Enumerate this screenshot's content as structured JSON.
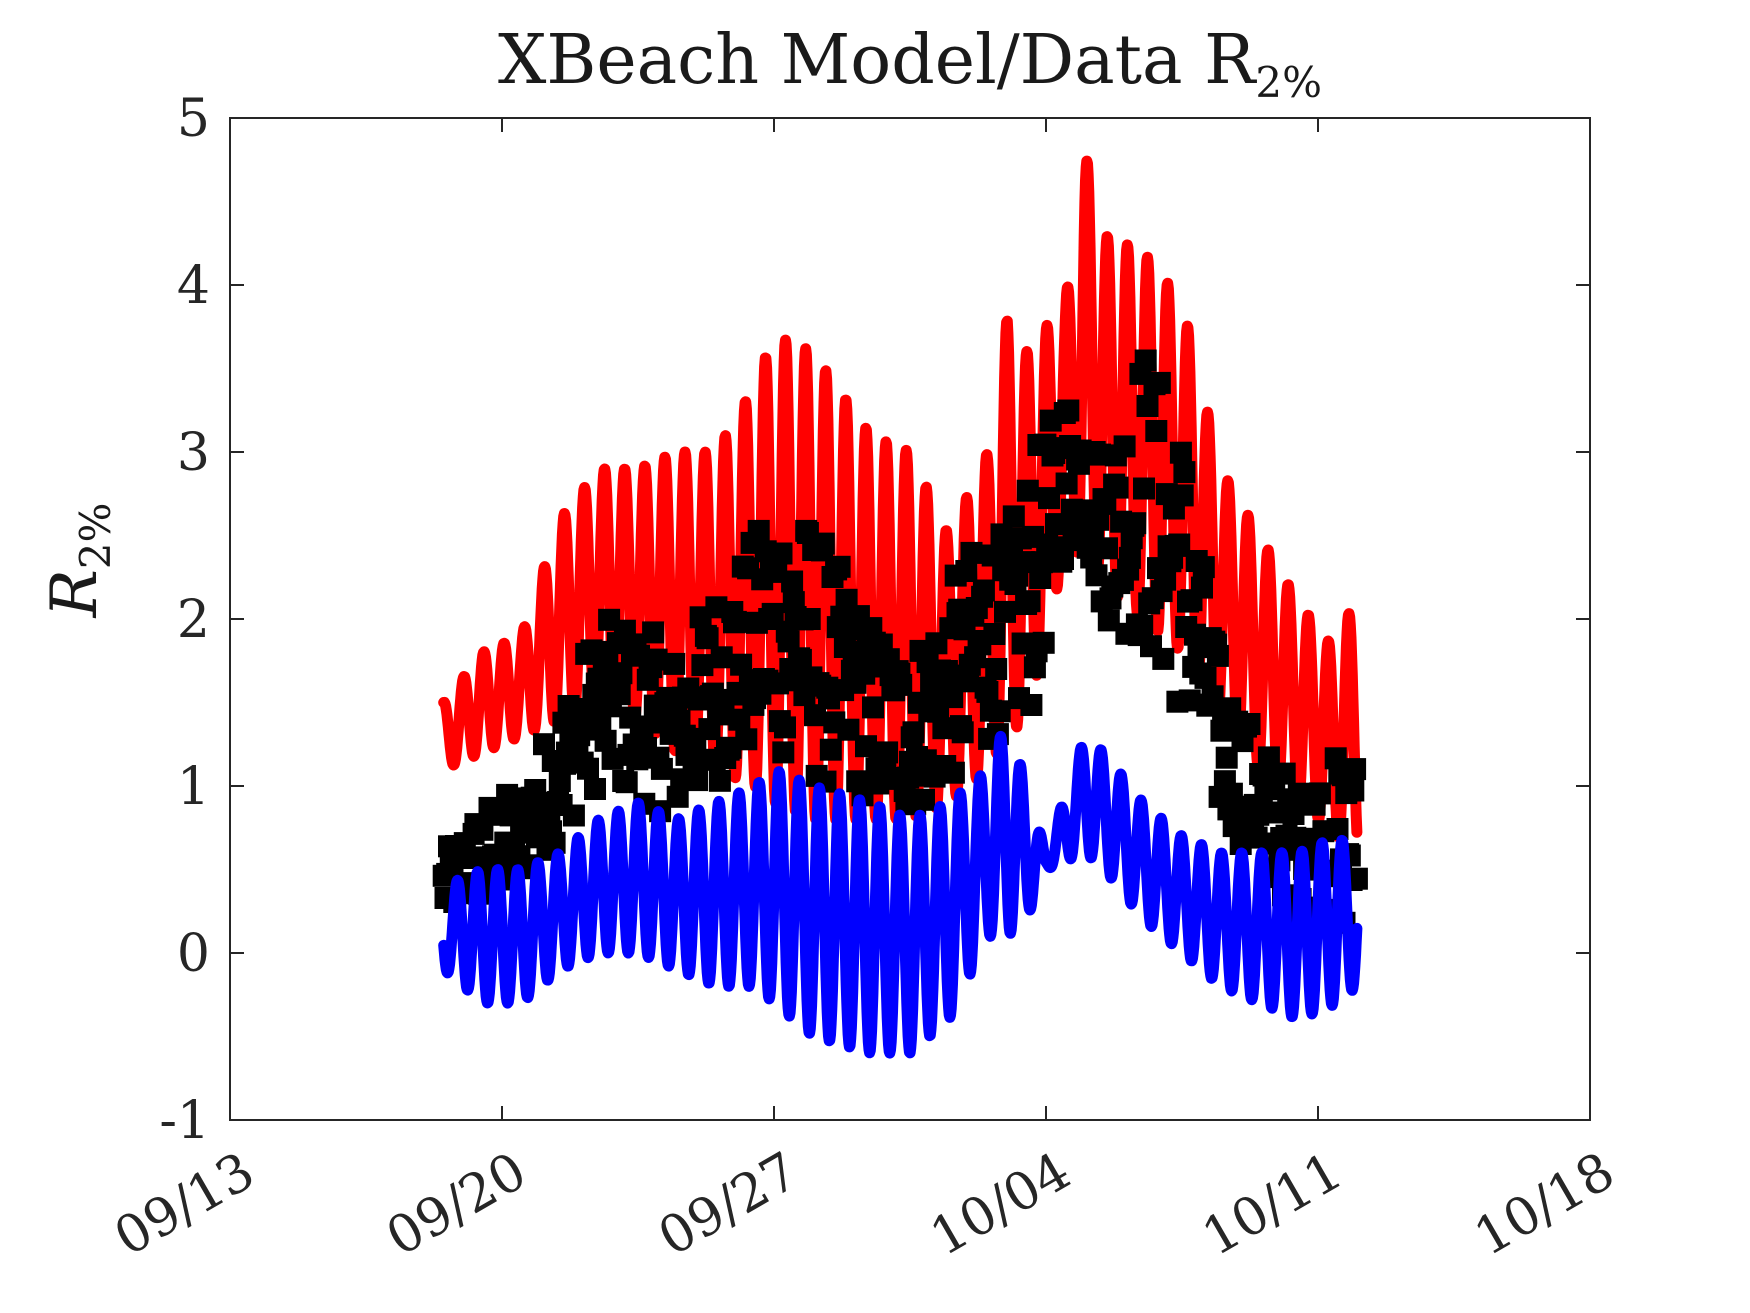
{
  "chart_data": {
    "type": "line",
    "title": "XBeach Model/Data R",
    "title_subscript": "2%",
    "ylabel": "R",
    "ylabel_subscript": "2%",
    "xlabel": "",
    "xlim": [
      "2023-09-13",
      "2023-10-18"
    ],
    "ylim": [
      -1,
      5
    ],
    "x_ticks": [
      "09/13",
      "09/20",
      "09/27",
      "10/04",
      "10/11",
      "10/18"
    ],
    "y_ticks": [
      "-1",
      "0",
      "1",
      "2",
      "3",
      "4",
      "5"
    ],
    "grid": false,
    "legend": "none",
    "colors": {
      "series_1": "#ff0000",
      "series_2": "#000000",
      "series_3": "#0000ff",
      "axes": "#262626"
    },
    "series": [
      {
        "style": "line",
        "color": "#ff0000",
        "period_hours": 12.42,
        "envelope": {
          "x": [
            "09/18 12:00",
            "09/19 12:00",
            "09/20 12:00",
            "09/21 12:00",
            "09/22 12:00",
            "09/23 12:00",
            "09/24 12:00",
            "09/25 12:00",
            "09/26 12:00",
            "09/27 00:00",
            "09/28 00:00",
            "09/29 12:00",
            "09/30 12:00",
            "10/01 12:00",
            "10/02 12:00",
            "10/03 00:00",
            "10/03 12:00",
            "10/04 12:00",
            "10/05 00:00",
            "10/05 12:00",
            "10/06 12:00",
            "10/07 12:00",
            "10/08 12:00",
            "10/09 12:00",
            "10/10 12:00",
            "10/11 12:00",
            "10/12 00:00"
          ],
          "max": [
            1.5,
            1.8,
            1.9,
            2.6,
            2.9,
            2.9,
            3.0,
            3.0,
            3.4,
            3.7,
            3.6,
            3.1,
            3.0,
            2.5,
            3.0,
            3.8,
            3.6,
            3.9,
            4.8,
            4.3,
            4.2,
            3.9,
            2.9,
            2.5,
            2.1,
            1.8,
            2.2
          ],
          "min": [
            1.1,
            1.2,
            1.3,
            1.4,
            1.5,
            1.4,
            1.2,
            1.1,
            1.0,
            0.9,
            0.8,
            0.8,
            0.8,
            0.9,
            1.1,
            1.3,
            1.4,
            2.4,
            2.4,
            2.2,
            2.0,
            1.8,
            1.4,
            1.1,
            0.9,
            0.7,
            0.6
          ]
        }
      },
      {
        "style": "square-markers",
        "color": "#000000",
        "envelope": {
          "x": [
            "09/18 12:00",
            "09/19 12:00",
            "09/20 12:00",
            "09/21 12:00",
            "09/22 12:00",
            "09/23 12:00",
            "09/24 12:00",
            "09/25 12:00",
            "09/26 12:00",
            "09/27 00:00",
            "09/28 00:00",
            "09/29 12:00",
            "09/30 12:00",
            "10/01 12:00",
            "10/02 12:00",
            "10/03 00:00",
            "10/03 12:00",
            "10/04 12:00",
            "10/05 00:00",
            "10/05 12:00",
            "10/06 12:00",
            "10/07 12:00",
            "10/08 12:00",
            "10/09 12:00",
            "10/10 12:00",
            "10/11 12:00",
            "10/12 00:00"
          ],
          "max": [
            0.6,
            0.9,
            1.0,
            1.5,
            2.0,
            2.0,
            1.8,
            2.2,
            2.5,
            2.8,
            2.6,
            2.0,
            1.8,
            2.2,
            2.6,
            2.5,
            2.9,
            3.4,
            3.3,
            3.0,
            3.7,
            3.2,
            1.7,
            1.3,
            1.0,
            1.2,
            1.2
          ],
          "min": [
            0.2,
            0.3,
            0.4,
            0.7,
            1.0,
            0.9,
            0.8,
            1.0,
            1.2,
            1.2,
            1.0,
            0.9,
            0.8,
            1.0,
            1.2,
            1.4,
            1.3,
            2.4,
            2.4,
            2.0,
            1.8,
            1.4,
            0.8,
            0.5,
            0.2,
            0.1,
            0.1
          ]
        }
      },
      {
        "style": "line",
        "color": "#0000ff",
        "period_hours": 12.42,
        "envelope": {
          "x": [
            "09/18 12:00",
            "09/19 12:00",
            "09/20 12:00",
            "09/21 12:00",
            "09/22 12:00",
            "09/23 12:00",
            "09/24 12:00",
            "09/25 12:00",
            "09/26 12:00",
            "09/27 00:00",
            "09/28 00:00",
            "09/29 12:00",
            "09/30 12:00",
            "10/01 12:00",
            "10/02 12:00",
            "10/03 00:00",
            "10/03 12:00",
            "10/04 00:00",
            "10/05 00:00",
            "10/05 12:00",
            "10/06 12:00",
            "10/07 12:00",
            "10/08 12:00",
            "10/09 12:00",
            "10/10 12:00",
            "10/11 12:00",
            "10/12 00:00"
          ],
          "max": [
            0.4,
            0.5,
            0.5,
            0.6,
            0.8,
            0.9,
            0.8,
            0.9,
            1.0,
            1.1,
            1.0,
            0.9,
            0.8,
            0.9,
            1.1,
            1.4,
            1.0,
            0.6,
            1.3,
            1.2,
            0.9,
            0.7,
            0.6,
            0.6,
            0.6,
            0.7,
            0.6
          ],
          "min": [
            -0.1,
            -0.3,
            -0.3,
            -0.1,
            0.0,
            0.0,
            -0.1,
            -0.2,
            -0.2,
            -0.3,
            -0.5,
            -0.6,
            -0.6,
            -0.4,
            0.1,
            0.1,
            0.2,
            0.5,
            0.6,
            0.5,
            0.2,
            0.0,
            -0.2,
            -0.3,
            -0.4,
            -0.3,
            -0.2
          ]
        }
      }
    ]
  }
}
